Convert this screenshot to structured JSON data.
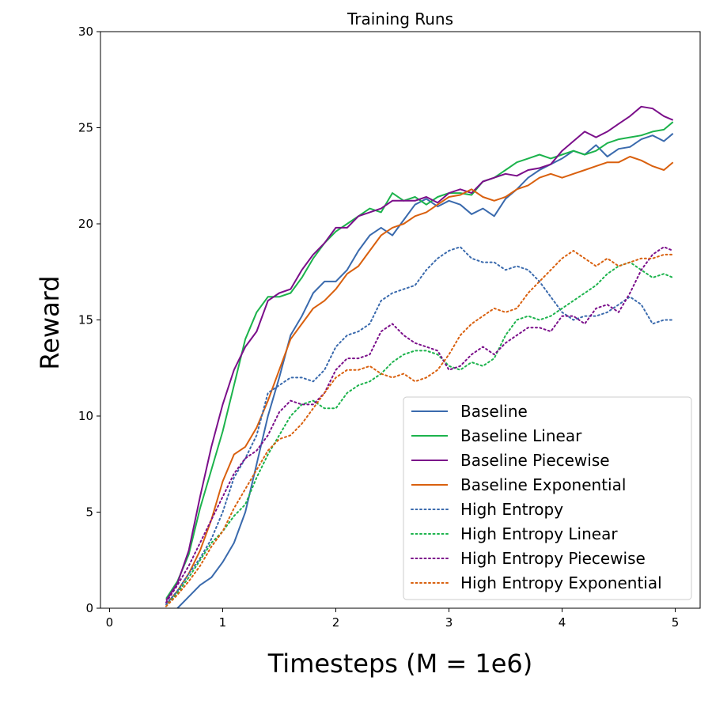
{
  "chart_data": {
    "type": "line",
    "title": "Training Runs",
    "xlabel": "Timesteps (M = 1e6)",
    "ylabel": "Reward",
    "xlim": [
      -0.08,
      5.22
    ],
    "ylim": [
      0,
      30
    ],
    "xticks": [
      0,
      1,
      2,
      3,
      4,
      5
    ],
    "yticks": [
      0,
      5,
      10,
      15,
      20,
      25,
      30
    ],
    "xtick_labels": [
      "0",
      "1",
      "2",
      "3",
      "4",
      "5"
    ],
    "ytick_labels": [
      "0",
      "5",
      "10",
      "15",
      "20",
      "25",
      "30"
    ],
    "grid": false,
    "legend_position": "lower-right",
    "x": [
      0.4,
      0.5,
      0.6,
      0.7,
      0.8,
      0.9,
      1.0,
      1.1,
      1.2,
      1.3,
      1.4,
      1.5,
      1.6,
      1.7,
      1.8,
      1.9,
      2.0,
      2.1,
      2.2,
      2.3,
      2.4,
      2.5,
      2.6,
      2.7,
      2.8,
      2.9,
      3.0,
      3.1,
      3.2,
      3.3,
      3.4,
      3.5,
      3.6,
      3.7,
      3.8,
      3.9,
      4.0,
      4.1,
      4.2,
      4.3,
      4.4,
      4.5,
      4.6,
      4.7,
      4.8,
      4.9,
      4.98
    ],
    "series": [
      {
        "name": "Baseline",
        "style": "solid",
        "color": "#3a6aad",
        "values": [
          null,
          null,
          0.0,
          0.6,
          1.2,
          1.6,
          2.4,
          3.4,
          5.0,
          7.5,
          10.0,
          12.0,
          14.2,
          15.2,
          16.4,
          17.0,
          17.0,
          17.6,
          18.6,
          19.4,
          19.8,
          19.4,
          20.2,
          21.0,
          21.3,
          20.9,
          21.2,
          21.0,
          20.5,
          20.8,
          20.4,
          21.3,
          21.8,
          22.4,
          22.8,
          23.1,
          23.4,
          23.8,
          23.6,
          24.1,
          23.5,
          23.9,
          24.0,
          24.4,
          24.6,
          24.3,
          24.7
        ]
      },
      {
        "name": "Baseline Linear",
        "style": "solid",
        "color": "#1cb34c",
        "values": [
          null,
          0.5,
          1.4,
          2.8,
          5.2,
          7.2,
          9.2,
          11.6,
          14.0,
          15.4,
          16.2,
          16.2,
          16.4,
          17.2,
          18.2,
          19.0,
          19.6,
          20.0,
          20.4,
          20.8,
          20.6,
          21.6,
          21.2,
          21.4,
          21.0,
          21.4,
          21.6,
          21.6,
          21.5,
          22.2,
          22.4,
          22.8,
          23.2,
          23.4,
          23.6,
          23.4,
          23.6,
          23.8,
          23.6,
          23.8,
          24.2,
          24.4,
          24.5,
          24.6,
          24.8,
          24.9,
          25.3
        ]
      },
      {
        "name": "Baseline Piecewise",
        "style": "solid",
        "color": "#7b0f8a",
        "values": [
          null,
          0.4,
          1.3,
          3.0,
          5.8,
          8.4,
          10.6,
          12.4,
          13.6,
          14.4,
          16.0,
          16.4,
          16.6,
          17.6,
          18.4,
          19.0,
          19.8,
          19.8,
          20.4,
          20.6,
          20.8,
          21.2,
          21.2,
          21.2,
          21.4,
          21.1,
          21.6,
          21.8,
          21.6,
          22.2,
          22.4,
          22.6,
          22.5,
          22.8,
          22.9,
          23.1,
          23.8,
          24.3,
          24.8,
          24.5,
          24.8,
          25.2,
          25.6,
          26.1,
          26.0,
          25.6,
          25.4
        ]
      },
      {
        "name": "Baseline Exponential",
        "style": "solid",
        "color": "#d9600e",
        "values": [
          null,
          0.2,
          0.9,
          1.8,
          3.0,
          4.6,
          6.6,
          8.0,
          8.4,
          9.4,
          10.8,
          12.4,
          14.0,
          14.8,
          15.6,
          16.0,
          16.6,
          17.4,
          17.8,
          18.6,
          19.4,
          19.8,
          20.0,
          20.4,
          20.6,
          21.0,
          21.4,
          21.5,
          21.8,
          21.4,
          21.2,
          21.4,
          21.8,
          22.0,
          22.4,
          22.6,
          22.4,
          22.6,
          22.8,
          23.0,
          23.2,
          23.2,
          23.5,
          23.3,
          23.0,
          22.8,
          23.2
        ]
      },
      {
        "name": "High Entropy",
        "style": "dotted",
        "color": "#3a6aad",
        "values": [
          null,
          0.2,
          0.9,
          1.8,
          2.6,
          3.6,
          5.0,
          6.8,
          7.8,
          9.0,
          11.2,
          11.6,
          12.0,
          12.0,
          11.8,
          12.4,
          13.6,
          14.2,
          14.4,
          14.8,
          16.0,
          16.4,
          16.6,
          16.8,
          17.6,
          18.2,
          18.6,
          18.8,
          18.2,
          18.0,
          18.0,
          17.6,
          17.8,
          17.6,
          17.0,
          16.2,
          15.4,
          15.0,
          15.2,
          15.2,
          15.4,
          15.8,
          16.2,
          15.8,
          14.8,
          15.0,
          15.0
        ]
      },
      {
        "name": "High Entropy Linear",
        "style": "dotted",
        "color": "#1cb34c",
        "values": [
          null,
          0.1,
          0.8,
          1.6,
          2.5,
          3.4,
          4.0,
          4.8,
          5.4,
          6.8,
          8.0,
          9.0,
          10.0,
          10.6,
          10.8,
          10.4,
          10.4,
          11.2,
          11.6,
          11.8,
          12.2,
          12.8,
          13.2,
          13.4,
          13.4,
          13.2,
          12.6,
          12.4,
          12.8,
          12.6,
          13.0,
          14.2,
          15.0,
          15.2,
          15.0,
          15.2,
          15.6,
          16.0,
          16.4,
          16.8,
          17.4,
          17.8,
          18.0,
          17.6,
          17.2,
          17.4,
          17.2
        ]
      },
      {
        "name": "High Entropy Piecewise",
        "style": "dotted",
        "color": "#7b0f8a",
        "values": [
          null,
          0.3,
          1.2,
          2.2,
          3.4,
          4.6,
          5.8,
          7.0,
          7.8,
          8.2,
          9.0,
          10.2,
          10.8,
          10.6,
          10.6,
          11.2,
          12.4,
          13.0,
          13.0,
          13.2,
          14.4,
          14.8,
          14.2,
          13.8,
          13.6,
          13.4,
          12.4,
          12.6,
          13.2,
          13.6,
          13.2,
          13.8,
          14.2,
          14.6,
          14.6,
          14.4,
          15.2,
          15.2,
          14.8,
          15.6,
          15.8,
          15.4,
          16.4,
          17.6,
          18.4,
          18.8,
          18.6
        ]
      },
      {
        "name": "High Entropy Exponential",
        "style": "dotted",
        "color": "#d9600e",
        "values": [
          null,
          0.1,
          0.7,
          1.4,
          2.2,
          3.2,
          4.0,
          5.2,
          6.2,
          7.2,
          8.2,
          8.8,
          9.0,
          9.6,
          10.4,
          11.2,
          12.0,
          12.4,
          12.4,
          12.6,
          12.2,
          12.0,
          12.2,
          11.8,
          12.0,
          12.4,
          13.2,
          14.2,
          14.8,
          15.2,
          15.6,
          15.4,
          15.6,
          16.4,
          17.0,
          17.6,
          18.2,
          18.6,
          18.2,
          17.8,
          18.2,
          17.8,
          18.0,
          18.2,
          18.2,
          18.4,
          18.4
        ]
      }
    ]
  }
}
